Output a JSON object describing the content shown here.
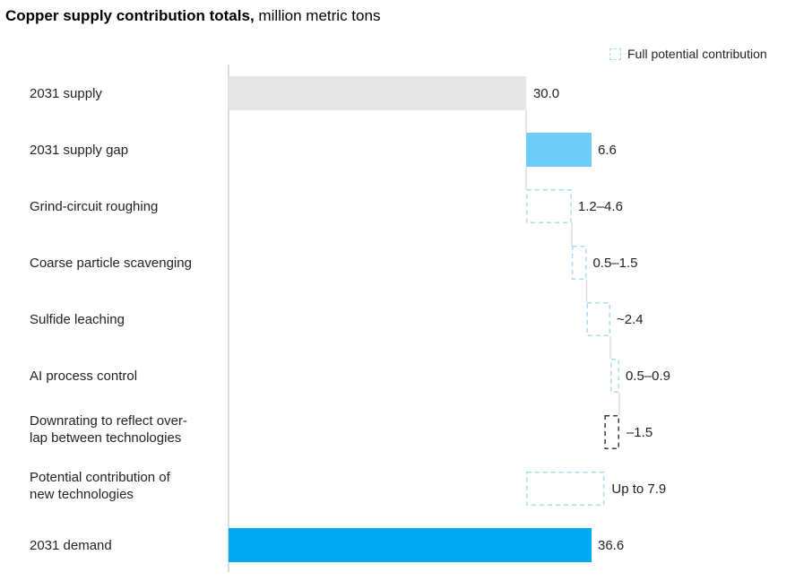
{
  "chart_data": {
    "type": "bar",
    "subtype": "waterfall",
    "title": "Copper supply contribution totals,",
    "subtitle": "million metric tons",
    "legend": [
      {
        "label": "Full potential contribution",
        "style": "dashed-outline",
        "color": "#a8dcf2",
        "placement": "top-right"
      }
    ],
    "xlim": [
      0,
      36.6
    ],
    "grid": false,
    "categories": [
      "2031 supply",
      "2031 supply gap",
      "Grind-circuit roughing",
      "Coarse particle scavenging",
      "Sulfide leaching",
      "AI process control",
      "Downrating to reflect over-\nlap between technologies",
      "Potential contribution of\nnew technologies",
      "2031 demand"
    ],
    "bars": [
      {
        "category": "2031 supply",
        "start": 0,
        "end": 30.0,
        "style": "solid",
        "color": "#e6e6e6",
        "label": "30.0"
      },
      {
        "category": "2031 supply gap",
        "start": 30.0,
        "end": 36.6,
        "style": "solid",
        "color": "#6ecbf5",
        "label": "6.6"
      },
      {
        "category": "Grind-circuit roughing",
        "start": 30.0,
        "end": 34.6,
        "style": "dashed",
        "color": "#a8dcf2",
        "label": "1.2–4.6"
      },
      {
        "category": "Coarse particle scavenging",
        "start": 34.6,
        "end": 36.1,
        "style": "dashed",
        "color": "#a8dcf2",
        "label": "0.5–1.5"
      },
      {
        "category": "Sulfide leaching",
        "start": 36.1,
        "end": 38.5,
        "style": "dashed",
        "color": "#a8dcf2",
        "label": "~2.4"
      },
      {
        "category": "AI process control",
        "start": 38.5,
        "end": 39.4,
        "style": "dashed",
        "color": "#a8dcf2",
        "label": "0.5–0.9"
      },
      {
        "category": "Downrating to reflect overlap between technologies",
        "start": 37.9,
        "end": 39.4,
        "style": "dashed",
        "color": "#333a45",
        "label": "–1.5"
      },
      {
        "category": "Potential contribution of new technologies",
        "start": 30.0,
        "end": 37.9,
        "style": "dashed",
        "color": "#a8dcf2",
        "label": "Up to 7.9"
      },
      {
        "category": "2031 demand",
        "start": 0,
        "end": 36.6,
        "style": "solid",
        "color": "#00a9f4",
        "label": "36.6"
      }
    ]
  }
}
